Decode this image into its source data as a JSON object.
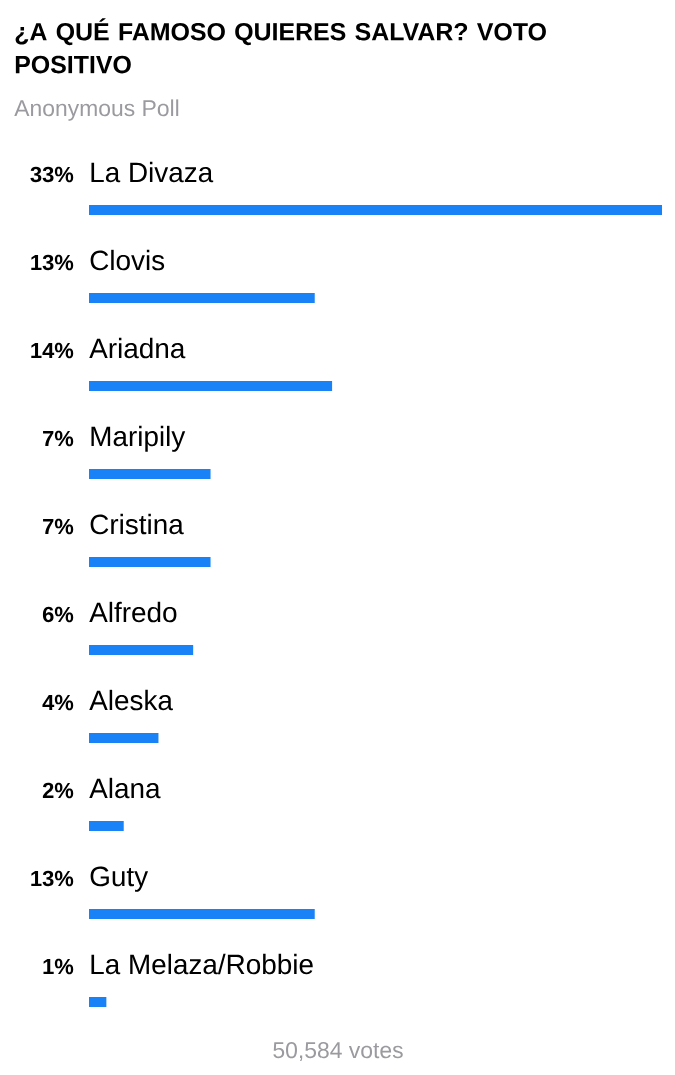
{
  "chart_data": {
    "type": "bar",
    "orientation": "horizontal",
    "title": "¿A QUÉ FAMOSO QUIERES SALVAR? VOTO POSITIVO",
    "subtitle": "Anonymous Poll",
    "categories": [
      "La Divaza",
      "Clovis",
      "Ariadna",
      "Maripily",
      "Cristina",
      "Alfredo",
      "Aleska",
      "Alana",
      "Guty",
      "La Melaza/Robbie"
    ],
    "values": [
      33,
      13,
      14,
      7,
      7,
      6,
      4,
      2,
      13,
      1
    ],
    "value_labels": [
      "33%",
      "13%",
      "14%",
      "7%",
      "7%",
      "6%",
      "4%",
      "2%",
      "13%",
      "1%"
    ],
    "color": "#1a82f7",
    "annotations": [
      "50,584 votes"
    ]
  }
}
